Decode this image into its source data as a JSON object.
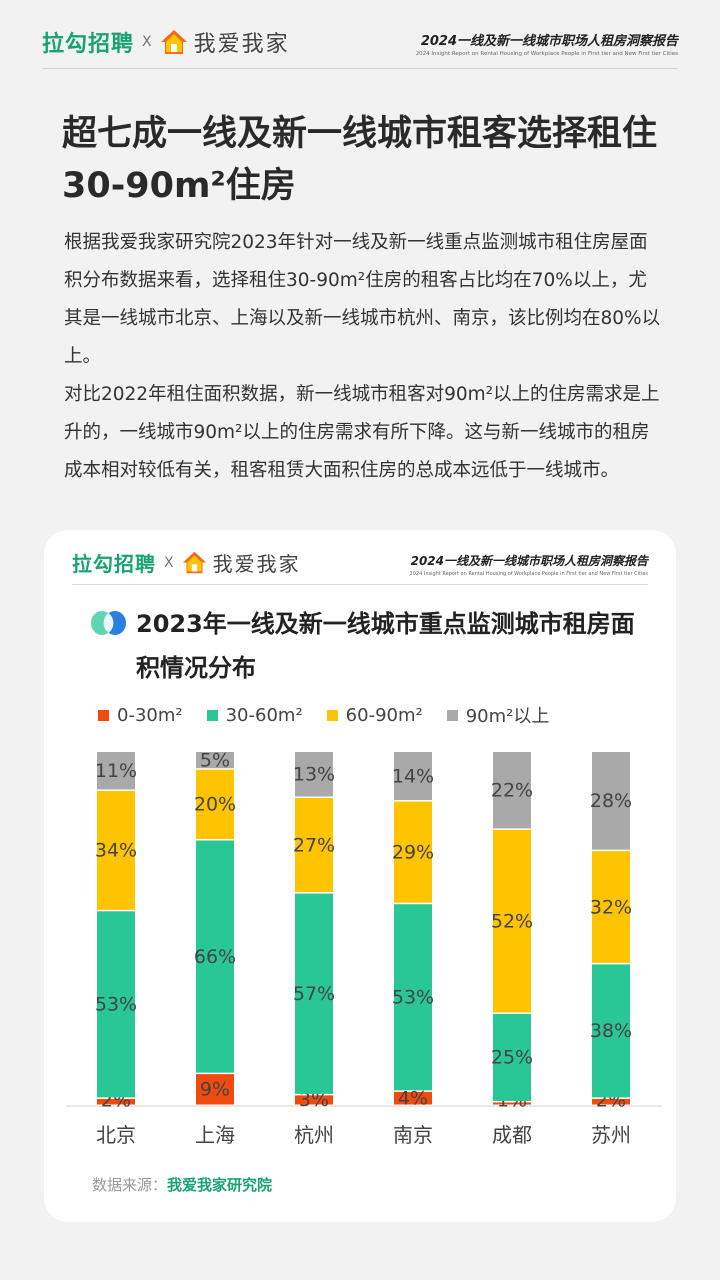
{
  "header": {
    "lagou": "拉勾招聘",
    "cross": "X",
    "woai": "我爱我家",
    "report_title": "2024一线及新一线城市职场人租房洞察报告",
    "report_subtitle": "2024 Insight Report on Rental Housing of Workplace People in First tier and New First tier Cities"
  },
  "headline": "超七成一线及新一线城市租客选择租住30-90m²住房",
  "paragraphs": [
    "根据我爱我家研究院2023年针对一线及新一线重点监测城市租住房屋面积分布数据来看，选择租住30-90m²住房的租客占比均在70%以上，尤其是一线城市北京、上海以及新一线城市杭州、南京，该比例均在80%以上。",
    "对比2022年租住面积数据，新一线城市租客对90m²以上的住房需求是上升的，一线城市90m²以上的住房需求有所下降。这与新一线城市的租房成本相对较低有关，租客租赁大面积住房的总成本远低于一线城市。"
  ],
  "card": {
    "source_label": "数据来源：",
    "source_name": "我爱我家研究院"
  },
  "chart_data": {
    "type": "bar",
    "stacked": true,
    "title": "2023年一线及新一线城市重点监测城市租房面积情况分布",
    "categories": [
      "北京",
      "上海",
      "杭州",
      "南京",
      "成都",
      "苏州"
    ],
    "series": [
      {
        "name": "0-30m²",
        "color": "#f04a0f",
        "values": [
          2,
          9,
          3,
          4,
          1,
          2
        ]
      },
      {
        "name": "30-60m²",
        "color": "#29c796",
        "values": [
          53,
          66,
          57,
          53,
          25,
          38
        ]
      },
      {
        "name": "60-90m²",
        "color": "#ffc400",
        "values": [
          34,
          20,
          27,
          29,
          52,
          32
        ]
      },
      {
        "name": "90m²以上",
        "color": "#a9a9a9",
        "values": [
          11,
          5,
          13,
          14,
          22,
          28
        ]
      }
    ],
    "labels": [
      [
        "2%",
        "53%",
        "34%",
        "11%"
      ],
      [
        "9%",
        "66%",
        "20%",
        "5%"
      ],
      [
        "3%",
        "57%",
        "27%",
        "13%"
      ],
      [
        "4%",
        "53%",
        "29%",
        "14%"
      ],
      [
        "1%",
        "25%",
        "52%",
        "22%"
      ],
      [
        "2%",
        "38%",
        "32%",
        "28%"
      ]
    ],
    "ylim": [
      0,
      100
    ],
    "legend_position": "top"
  }
}
